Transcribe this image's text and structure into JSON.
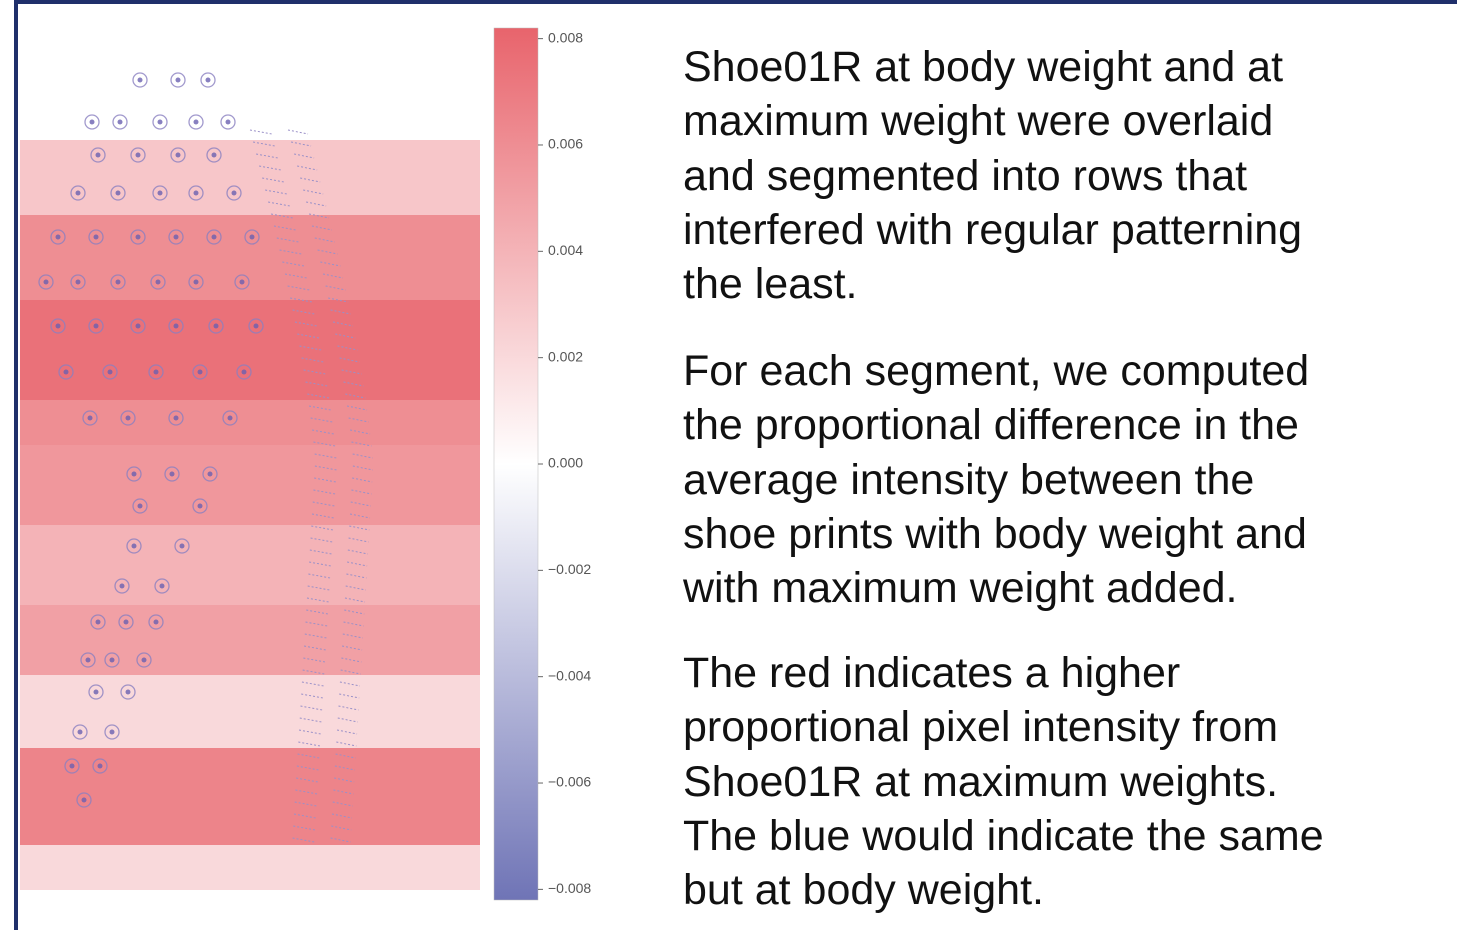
{
  "figure": {
    "colorbar": {
      "clim": [
        -0.0082,
        0.0082
      ],
      "ticks": [
        0.008,
        0.006,
        0.004,
        0.002,
        {
          "value": 0,
          "label": "0.000"
        },
        {
          "value": -0.002,
          "label": "−0.002"
        },
        {
          "value": -0.004,
          "label": "−0.004"
        },
        {
          "value": -0.006,
          "label": "−0.006"
        },
        {
          "value": -0.008,
          "label": "−0.008"
        }
      ]
    },
    "segments": [
      0.003,
      0.006,
      0.0075,
      0.006,
      0.0055,
      0.004,
      0.005,
      0.002,
      0.0065,
      0.002
    ]
  },
  "text": {
    "paragraphs": [
      [
        "Shoe01R at body weight and at",
        "maximum weight were overlaid",
        "and segmented into rows that",
        "interfered with regular patterning",
        "the least."
      ],
      [
        "For each segment, we computed",
        "the proportional difference in the",
        "average intensity between the",
        "shoe prints with body weight and",
        "with maximum weight added."
      ],
      [
        "The red indicates a higher",
        "proportional pixel intensity from",
        "Shoe01R at maximum weights.",
        "The blue would indicate the same",
        "but at body weight."
      ]
    ]
  }
}
